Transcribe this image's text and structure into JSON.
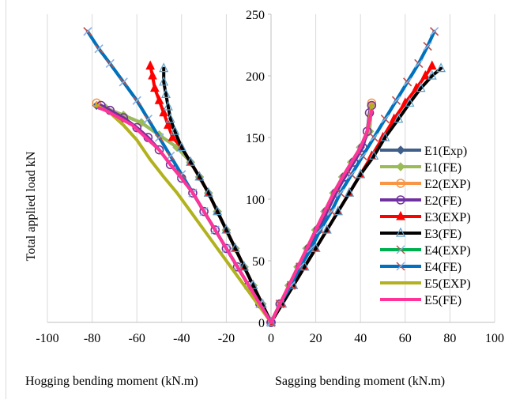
{
  "chart_data": {
    "type": "line",
    "ylabel": "Total applied load kN",
    "xlabel_left": "Hogging bending moment (kN.m)",
    "xlabel_right": "Sagging bending moment (kN.m)",
    "xlim": [
      -100,
      100
    ],
    "ylim": [
      0,
      250
    ],
    "xticks": [
      -100,
      -80,
      -60,
      -40,
      -20,
      0,
      20,
      40,
      60,
      80,
      100
    ],
    "yticks": [
      0,
      50,
      100,
      150,
      200,
      250
    ],
    "grid": "vertical",
    "legend_position": "right",
    "series": [
      {
        "name": "E1(Exp)",
        "color": "#3f5f8a",
        "marker": "diamond",
        "hog": [
          [
            0,
            0
          ],
          [
            -4,
            15
          ],
          [
            -8,
            30
          ],
          [
            -12,
            45
          ],
          [
            -16,
            60
          ],
          [
            -20,
            75
          ],
          [
            -24,
            90
          ],
          [
            -28,
            105
          ],
          [
            -32,
            118
          ],
          [
            -36,
            130
          ],
          [
            -42,
            142
          ],
          [
            -50,
            152
          ],
          [
            -58,
            162
          ],
          [
            -66,
            168
          ],
          [
            -74,
            174
          ],
          [
            -78,
            176
          ]
        ],
        "sag": [
          [
            0,
            0
          ],
          [
            4,
            15
          ],
          [
            8,
            30
          ],
          [
            12,
            45
          ],
          [
            16,
            60
          ],
          [
            20,
            75
          ],
          [
            24,
            90
          ],
          [
            28,
            105
          ],
          [
            32,
            118
          ],
          [
            36,
            130
          ],
          [
            40,
            142
          ],
          [
            44,
            155
          ],
          [
            45,
            176
          ]
        ]
      },
      {
        "name": "E1(FE)",
        "color": "#9bbb59",
        "marker": "diamond",
        "hog": [
          [
            0,
            0
          ],
          [
            -4,
            15
          ],
          [
            -8,
            30
          ],
          [
            -12,
            45
          ],
          [
            -16,
            60
          ],
          [
            -20,
            75
          ],
          [
            -24,
            90
          ],
          [
            -28,
            105
          ],
          [
            -32,
            118
          ],
          [
            -36,
            130
          ],
          [
            -42,
            142
          ],
          [
            -50,
            152
          ],
          [
            -58,
            162
          ],
          [
            -66,
            168
          ],
          [
            -74,
            174
          ],
          [
            -77,
            176
          ]
        ],
        "sag": [
          [
            0,
            0
          ],
          [
            4,
            15
          ],
          [
            8,
            30
          ],
          [
            12,
            45
          ],
          [
            16,
            60
          ],
          [
            20,
            75
          ],
          [
            24,
            90
          ],
          [
            28,
            105
          ],
          [
            32,
            118
          ],
          [
            36,
            130
          ],
          [
            40,
            142
          ],
          [
            44,
            155
          ],
          [
            45,
            176
          ]
        ]
      },
      {
        "name": "E2(EXP)",
        "color": "#f79646",
        "marker": "circle",
        "hog": [
          [
            0,
            0
          ],
          [
            -5,
            15
          ],
          [
            -10,
            30
          ],
          [
            -15,
            45
          ],
          [
            -20,
            60
          ],
          [
            -25,
            75
          ],
          [
            -30,
            90
          ],
          [
            -35,
            105
          ],
          [
            -40,
            117
          ],
          [
            -45,
            128
          ],
          [
            -50,
            140
          ],
          [
            -55,
            150
          ],
          [
            -60,
            158
          ],
          [
            -66,
            166
          ],
          [
            -72,
            172
          ],
          [
            -78,
            178
          ]
        ],
        "sag": [
          [
            0,
            0
          ],
          [
            4,
            15
          ],
          [
            9,
            30
          ],
          [
            13,
            45
          ],
          [
            17,
            60
          ],
          [
            21,
            75
          ],
          [
            25,
            90
          ],
          [
            29,
            105
          ],
          [
            33,
            118
          ],
          [
            37,
            130
          ],
          [
            41,
            142
          ],
          [
            43,
            155
          ],
          [
            44,
            170
          ],
          [
            45,
            178
          ]
        ]
      },
      {
        "name": "E2(FE)",
        "color": "#7030a0",
        "marker": "circle",
        "hog": [
          [
            0,
            0
          ],
          [
            -5,
            15
          ],
          [
            -10,
            30
          ],
          [
            -15,
            45
          ],
          [
            -20,
            60
          ],
          [
            -25,
            75
          ],
          [
            -30,
            90
          ],
          [
            -35,
            105
          ],
          [
            -40,
            117
          ],
          [
            -45,
            128
          ],
          [
            -50,
            140
          ],
          [
            -55,
            150
          ],
          [
            -60,
            158
          ],
          [
            -66,
            166
          ],
          [
            -72,
            172
          ],
          [
            -76,
            176
          ]
        ],
        "sag": [
          [
            0,
            0
          ],
          [
            4,
            15
          ],
          [
            9,
            30
          ],
          [
            13,
            45
          ],
          [
            17,
            60
          ],
          [
            21,
            75
          ],
          [
            25,
            90
          ],
          [
            29,
            105
          ],
          [
            33,
            118
          ],
          [
            37,
            130
          ],
          [
            41,
            142
          ],
          [
            43,
            155
          ],
          [
            44,
            170
          ],
          [
            45,
            176
          ]
        ]
      },
      {
        "name": "E3(EXP)",
        "color": "#ff0000",
        "marker": "triangle",
        "hog": [
          [
            0,
            0
          ],
          [
            -4,
            15
          ],
          [
            -8,
            30
          ],
          [
            -12,
            45
          ],
          [
            -16,
            60
          ],
          [
            -20,
            75
          ],
          [
            -24,
            90
          ],
          [
            -28,
            105
          ],
          [
            -32,
            118
          ],
          [
            -36,
            130
          ],
          [
            -40,
            142
          ],
          [
            -44,
            150
          ],
          [
            -46,
            160
          ],
          [
            -48,
            170
          ],
          [
            -50,
            180
          ],
          [
            -52,
            190
          ],
          [
            -53,
            200
          ],
          [
            -54,
            208
          ]
        ],
        "sag": [
          [
            0,
            0
          ],
          [
            5,
            15
          ],
          [
            10,
            30
          ],
          [
            15,
            45
          ],
          [
            20,
            60
          ],
          [
            25,
            75
          ],
          [
            30,
            90
          ],
          [
            35,
            105
          ],
          [
            40,
            120
          ],
          [
            45,
            135
          ],
          [
            50,
            150
          ],
          [
            55,
            165
          ],
          [
            60,
            178
          ],
          [
            65,
            190
          ],
          [
            69,
            200
          ],
          [
            72,
            208
          ]
        ]
      },
      {
        "name": "E3(FE)",
        "color": "#000000",
        "marker": "triangle-open",
        "hog": [
          [
            0,
            0
          ],
          [
            -4,
            15
          ],
          [
            -8,
            30
          ],
          [
            -12,
            45
          ],
          [
            -16,
            60
          ],
          [
            -20,
            75
          ],
          [
            -24,
            90
          ],
          [
            -28,
            105
          ],
          [
            -32,
            118
          ],
          [
            -36,
            130
          ],
          [
            -40,
            142
          ],
          [
            -43,
            155
          ],
          [
            -45,
            165
          ],
          [
            -46,
            175
          ],
          [
            -47,
            185
          ],
          [
            -48,
            195
          ],
          [
            -48,
            206
          ]
        ],
        "sag": [
          [
            0,
            0
          ],
          [
            5,
            15
          ],
          [
            10,
            30
          ],
          [
            15,
            45
          ],
          [
            20,
            60
          ],
          [
            25,
            75
          ],
          [
            30,
            90
          ],
          [
            35,
            105
          ],
          [
            40,
            120
          ],
          [
            46,
            135
          ],
          [
            51,
            150
          ],
          [
            57,
            165
          ],
          [
            62,
            178
          ],
          [
            67,
            190
          ],
          [
            72,
            200
          ],
          [
            76,
            206
          ]
        ]
      },
      {
        "name": "E4(EXP)",
        "color": "#00b050",
        "marker": "x",
        "hog": [
          [
            0,
            0
          ],
          [
            -5,
            15
          ],
          [
            -10,
            30
          ],
          [
            -15,
            45
          ],
          [
            -20,
            60
          ],
          [
            -25,
            75
          ],
          [
            -30,
            90
          ],
          [
            -35,
            105
          ],
          [
            -40,
            120
          ],
          [
            -45,
            135
          ],
          [
            -50,
            150
          ],
          [
            -55,
            165
          ],
          [
            -60,
            180
          ],
          [
            -66,
            195
          ],
          [
            -72,
            210
          ],
          [
            -77,
            222
          ],
          [
            -82,
            236
          ]
        ],
        "sag": [
          [
            0,
            0
          ],
          [
            4,
            15
          ],
          [
            9,
            30
          ],
          [
            13,
            45
          ],
          [
            18,
            60
          ],
          [
            22,
            75
          ],
          [
            27,
            90
          ],
          [
            31,
            105
          ],
          [
            36,
            120
          ],
          [
            41,
            135
          ],
          [
            46,
            150
          ],
          [
            51,
            165
          ],
          [
            56,
            180
          ],
          [
            61,
            195
          ],
          [
            66,
            210
          ],
          [
            70,
            224
          ],
          [
            73,
            236
          ]
        ]
      },
      {
        "name": "E4(FE)",
        "color": "#0070c0",
        "marker": "x",
        "hog": [
          [
            0,
            0
          ],
          [
            -5,
            15
          ],
          [
            -10,
            30
          ],
          [
            -15,
            45
          ],
          [
            -20,
            60
          ],
          [
            -25,
            75
          ],
          [
            -30,
            90
          ],
          [
            -35,
            105
          ],
          [
            -40,
            120
          ],
          [
            -45,
            135
          ],
          [
            -50,
            150
          ],
          [
            -55,
            165
          ],
          [
            -60,
            180
          ],
          [
            -66,
            195
          ],
          [
            -72,
            210
          ],
          [
            -77,
            222
          ],
          [
            -82,
            236
          ]
        ],
        "sag": [
          [
            0,
            0
          ],
          [
            4,
            15
          ],
          [
            9,
            30
          ],
          [
            13,
            45
          ],
          [
            18,
            60
          ],
          [
            22,
            75
          ],
          [
            27,
            90
          ],
          [
            31,
            105
          ],
          [
            36,
            120
          ],
          [
            41,
            135
          ],
          [
            46,
            150
          ],
          [
            51,
            165
          ],
          [
            56,
            180
          ],
          [
            61,
            195
          ],
          [
            66,
            210
          ],
          [
            70,
            224
          ],
          [
            73,
            236
          ]
        ]
      },
      {
        "name": "E5(EXP)",
        "color": "#b2b21e",
        "marker": "none",
        "hog": [
          [
            0,
            0
          ],
          [
            -6,
            15
          ],
          [
            -12,
            30
          ],
          [
            -18,
            45
          ],
          [
            -24,
            60
          ],
          [
            -30,
            75
          ],
          [
            -36,
            90
          ],
          [
            -42,
            105
          ],
          [
            -48,
            118
          ],
          [
            -54,
            132
          ],
          [
            -60,
            148
          ],
          [
            -66,
            160
          ],
          [
            -72,
            170
          ],
          [
            -78,
            176
          ]
        ],
        "sag": [
          [
            0,
            0
          ],
          [
            4,
            15
          ],
          [
            8,
            30
          ],
          [
            12,
            45
          ],
          [
            16,
            60
          ],
          [
            20,
            75
          ],
          [
            24,
            90
          ],
          [
            28,
            105
          ],
          [
            32,
            118
          ],
          [
            36,
            130
          ],
          [
            40,
            142
          ],
          [
            43,
            155
          ],
          [
            45,
            176
          ]
        ]
      },
      {
        "name": "E5(FE)",
        "color": "#ff3399",
        "marker": "none",
        "hog": [
          [
            0,
            0
          ],
          [
            -5,
            15
          ],
          [
            -10,
            30
          ],
          [
            -15,
            45
          ],
          [
            -20,
            60
          ],
          [
            -25,
            75
          ],
          [
            -30,
            90
          ],
          [
            -35,
            105
          ],
          [
            -40,
            117
          ],
          [
            -45,
            128
          ],
          [
            -50,
            140
          ],
          [
            -56,
            150
          ],
          [
            -62,
            160
          ],
          [
            -68,
            166
          ],
          [
            -74,
            172
          ],
          [
            -77,
            174
          ]
        ],
        "sag": [
          [
            0,
            0
          ],
          [
            4,
            15
          ],
          [
            8,
            30
          ],
          [
            12,
            45
          ],
          [
            16,
            60
          ],
          [
            20,
            75
          ],
          [
            24,
            90
          ],
          [
            28,
            105
          ],
          [
            32,
            118
          ],
          [
            36,
            130
          ],
          [
            40,
            142
          ],
          [
            43,
            155
          ],
          [
            45,
            172
          ]
        ]
      }
    ]
  }
}
